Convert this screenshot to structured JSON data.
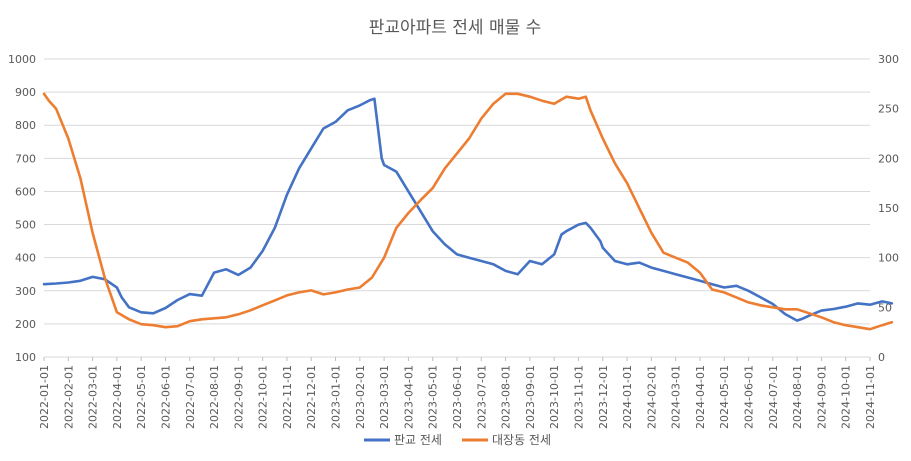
{
  "chart_data": {
    "type": "line",
    "title": "판교아파트 전세 매물 수",
    "y_left": {
      "min": 100,
      "max": 1000,
      "ticks": [
        100,
        200,
        300,
        400,
        500,
        600,
        700,
        800,
        900,
        1000
      ]
    },
    "y_right": {
      "min": 0,
      "max": 300,
      "ticks": [
        0,
        50,
        100,
        150,
        200,
        250,
        300
      ]
    },
    "x_ticks": [
      "2022-01-01",
      "2022-02-01",
      "2022-03-01",
      "2022-04-01",
      "2022-05-01",
      "2022-06-01",
      "2022-07-01",
      "2022-08-01",
      "2022-09-01",
      "2022-10-01",
      "2022-11-01",
      "2022-12-01",
      "2023-01-01",
      "2023-02-01",
      "2023-03-01",
      "2023-04-01",
      "2023-05-01",
      "2023-06-01",
      "2023-07-01",
      "2023-08-01",
      "2023-09-01",
      "2023-10-01",
      "2023-11-01",
      "2023-12-01",
      "2024-01-01",
      "2024-02-01",
      "2024-03-01",
      "2024-04-01",
      "2024-05-01",
      "2024-06-01",
      "2024-07-01",
      "2024-08-01",
      "2024-09-01",
      "2024-10-01",
      "2024-11-01"
    ],
    "x_unit": "months since 2022-01-01",
    "legend_position": "bottom",
    "series": [
      {
        "name": "판교 전세",
        "axis": "left",
        "color": "#4472C4",
        "x": [
          0,
          0.5,
          1,
          1.5,
          2,
          2.5,
          3,
          3.2,
          3.5,
          4,
          4.5,
          5,
          5.5,
          6,
          6.5,
          7,
          7.5,
          8,
          8.5,
          9,
          9.5,
          10,
          10.5,
          11,
          11.5,
          12,
          12.5,
          13,
          13.4,
          13.6,
          13.9,
          14,
          14.5,
          15,
          15.5,
          16,
          16.5,
          17,
          17.5,
          18,
          18.5,
          19,
          19.5,
          20,
          20.5,
          21,
          21.3,
          21.5,
          22,
          22.3,
          22.5,
          22.9,
          23,
          23.5,
          24,
          24.5,
          25,
          25.5,
          26,
          26.5,
          27,
          27.5,
          28,
          28.5,
          29,
          29.5,
          30,
          30.5,
          31,
          31.2,
          31.5,
          32,
          32.5,
          33,
          33.5,
          34,
          34.5,
          34.9
        ],
        "values": [
          320,
          322,
          325,
          330,
          342,
          335,
          310,
          280,
          250,
          235,
          232,
          248,
          272,
          290,
          285,
          355,
          365,
          348,
          370,
          420,
          490,
          590,
          670,
          730,
          790,
          810,
          845,
          860,
          875,
          880,
          700,
          680,
          660,
          600,
          540,
          480,
          440,
          410,
          400,
          390,
          380,
          360,
          350,
          390,
          380,
          410,
          470,
          480,
          500,
          505,
          490,
          450,
          430,
          390,
          380,
          385,
          370,
          360,
          350,
          340,
          330,
          320,
          310,
          315,
          300,
          280,
          260,
          230,
          210,
          215,
          225,
          240,
          245,
          252,
          262,
          258,
          268,
          262
        ]
      },
      {
        "name": "대장동 전세",
        "axis": "right",
        "color": "#ED7D31",
        "x": [
          0,
          0.2,
          0.5,
          1,
          1.5,
          2,
          2.5,
          3,
          3.5,
          4,
          4.5,
          5,
          5.5,
          6,
          6.5,
          7,
          7.5,
          8,
          8.5,
          9,
          9.5,
          10,
          10.5,
          11,
          11.5,
          12,
          12.5,
          13,
          13.5,
          14,
          14.5,
          15,
          15.5,
          16,
          16.5,
          17,
          17.5,
          18,
          18.5,
          19,
          19.5,
          20,
          20.5,
          21,
          21.5,
          22,
          22.3,
          22.5,
          23,
          23.5,
          24,
          24.5,
          25,
          25.5,
          26,
          26.5,
          27,
          27.5,
          28,
          28.5,
          29,
          29.5,
          30,
          30.5,
          31,
          31.5,
          32,
          32.5,
          33,
          33.5,
          34,
          34.5,
          34.9
        ],
        "values": [
          265,
          258,
          250,
          220,
          180,
          125,
          80,
          45,
          38,
          33,
          32,
          30,
          31,
          36,
          38,
          39,
          40,
          43,
          47,
          52,
          57,
          62,
          65,
          67,
          63,
          65,
          68,
          70,
          80,
          100,
          130,
          145,
          158,
          170,
          190,
          205,
          220,
          240,
          255,
          265,
          265,
          262,
          258,
          255,
          262,
          260,
          262,
          248,
          220,
          195,
          175,
          150,
          125,
          105,
          100,
          95,
          85,
          68,
          65,
          60,
          55,
          52,
          50,
          48,
          48,
          44,
          40,
          35,
          32,
          30,
          28,
          32,
          35
        ]
      }
    ]
  }
}
